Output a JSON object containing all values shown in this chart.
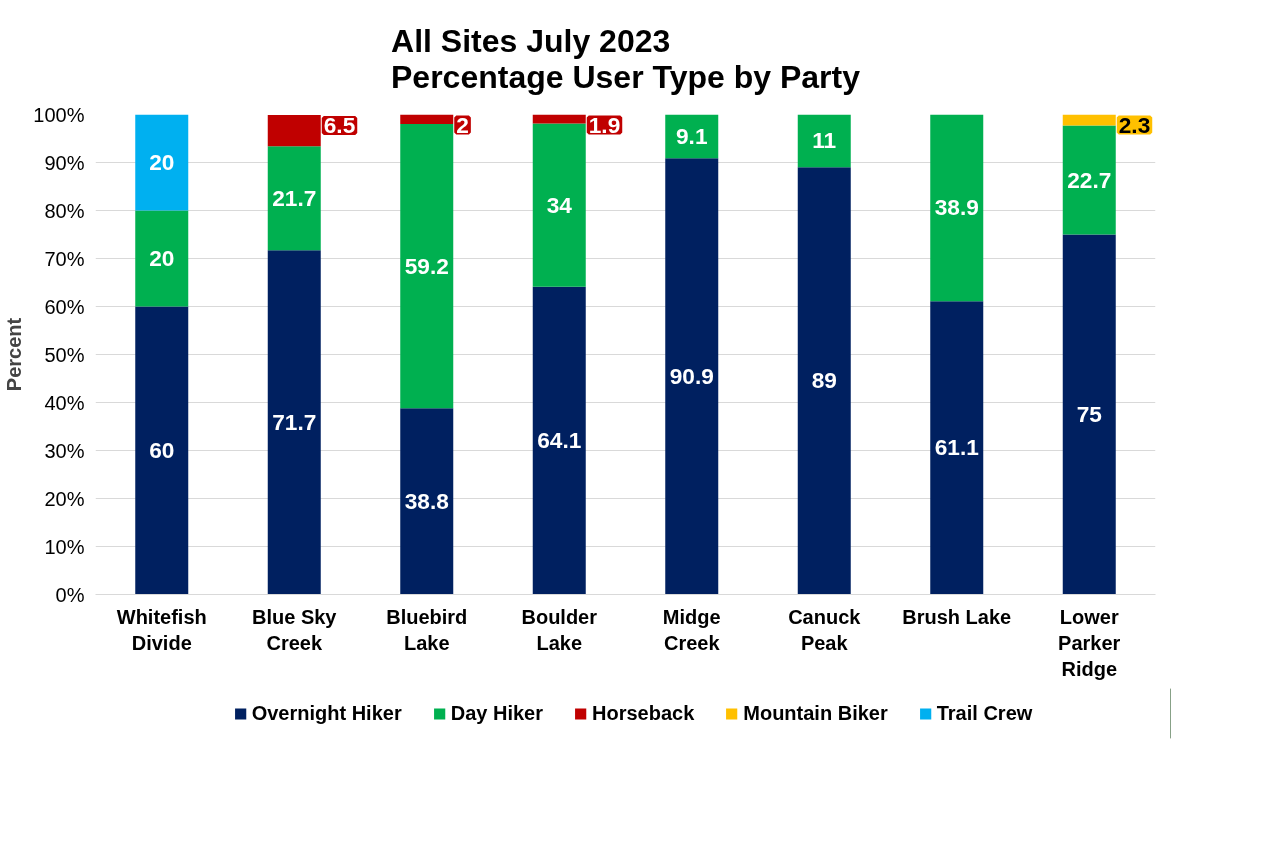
{
  "chart_data": {
    "type": "bar",
    "title": "All Sites July 2023\nPercentage User Type by Party",
    "ylabel": "Percent",
    "stacked": true,
    "data_labels": true,
    "grid": "y",
    "legend": "bottom",
    "categories": [
      "Whitefish Divide",
      "Blue Sky Creek",
      "Bluebird Lake",
      "Boulder Lake",
      "Midge Creek",
      "Canuck Peak",
      "Brush Lake",
      "Lower Parker Ridge"
    ],
    "ylim": [
      0,
      100
    ],
    "yticks": [
      {
        "value": 0,
        "label": "0%"
      },
      {
        "value": 10,
        "label": "10%"
      },
      {
        "value": 20,
        "label": "20%"
      },
      {
        "value": 30,
        "label": "30%"
      },
      {
        "value": 40,
        "label": "40%"
      },
      {
        "value": 50,
        "label": "50%"
      },
      {
        "value": 60,
        "label": "60%"
      },
      {
        "value": 70,
        "label": "70%"
      },
      {
        "value": 80,
        "label": "80%"
      },
      {
        "value": 90,
        "label": "90%"
      },
      {
        "value": 100,
        "label": "100%"
      }
    ],
    "series": [
      {
        "name": "Overnight Hiker",
        "color": "#002060",
        "values": [
          60,
          71.7,
          38.8,
          64.1,
          90.9,
          89,
          61.1,
          75
        ]
      },
      {
        "name": "Day Hiker",
        "color": "#00b050",
        "values": [
          20,
          21.7,
          59.2,
          34,
          9.1,
          11,
          38.9,
          22.7
        ]
      },
      {
        "name": "Horseback",
        "color": "#c00000",
        "values": [
          null,
          6.5,
          2,
          1.9,
          null,
          null,
          null,
          null
        ]
      },
      {
        "name": "Mountain Biker",
        "color": "#ffc000",
        "values": [
          null,
          null,
          null,
          null,
          null,
          null,
          null,
          2.3
        ]
      },
      {
        "name": "Trail Crew",
        "color": "#00b0f0",
        "values": [
          20,
          null,
          null,
          null,
          null,
          null,
          null,
          null
        ]
      }
    ]
  }
}
